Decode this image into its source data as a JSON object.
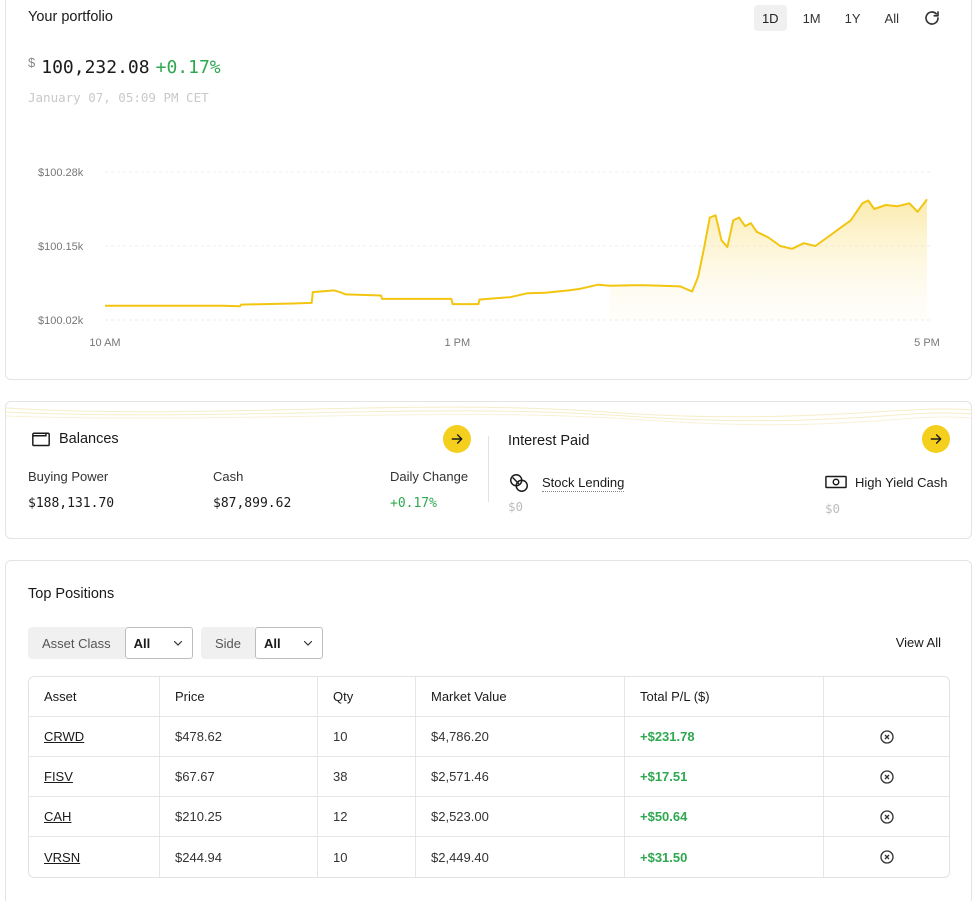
{
  "portfolio": {
    "title": "Your portfolio",
    "ranges": [
      "1D",
      "1M",
      "1Y",
      "All"
    ],
    "active_range": "1D",
    "currency": "$",
    "value": "100,232.08",
    "change": "+0.17%",
    "timestamp": "January 07, 05:09 PM CET"
  },
  "chart_data": {
    "type": "area",
    "y_tick_labels": [
      "$100.28k",
      "$100.15k",
      "$100.02k"
    ],
    "y_ticks": [
      100280,
      100150,
      100020
    ],
    "ylim": [
      100020,
      100280
    ],
    "x_tick_labels": [
      "10 AM",
      "1 PM",
      "5 PM"
    ],
    "x_ticks": [
      10,
      13,
      17
    ],
    "xlim": [
      10,
      17
    ],
    "line_color": "#f2c511",
    "grid": "horizontal dashed",
    "points": [
      [
        10.0,
        100045
      ],
      [
        10.5,
        100045
      ],
      [
        11.0,
        100045
      ],
      [
        11.15,
        100044
      ],
      [
        11.16,
        100047
      ],
      [
        11.6,
        100049
      ],
      [
        11.76,
        100050
      ],
      [
        11.77,
        100069
      ],
      [
        11.95,
        100072
      ],
      [
        12.0,
        100069
      ],
      [
        12.05,
        100065
      ],
      [
        12.35,
        100063
      ],
      [
        12.36,
        100057
      ],
      [
        12.6,
        100057
      ],
      [
        12.95,
        100057
      ],
      [
        12.96,
        100048
      ],
      [
        13.18,
        100048
      ],
      [
        13.19,
        100056
      ],
      [
        13.45,
        100060
      ],
      [
        13.6,
        100067
      ],
      [
        13.75,
        100068
      ],
      [
        13.95,
        100072
      ],
      [
        14.05,
        100075
      ],
      [
        14.2,
        100082
      ],
      [
        14.3,
        100080
      ],
      [
        14.5,
        100081
      ],
      [
        14.6,
        100081
      ],
      [
        14.9,
        100079
      ],
      [
        15.0,
        100070
      ],
      [
        15.05,
        100095
      ],
      [
        15.1,
        100145
      ],
      [
        15.15,
        100200
      ],
      [
        15.2,
        100204
      ],
      [
        15.25,
        100160
      ],
      [
        15.3,
        100148
      ],
      [
        15.35,
        100195
      ],
      [
        15.4,
        100200
      ],
      [
        15.45,
        100185
      ],
      [
        15.5,
        100190
      ],
      [
        15.55,
        100175
      ],
      [
        15.65,
        100165
      ],
      [
        15.75,
        100150
      ],
      [
        15.85,
        100145
      ],
      [
        15.95,
        100155
      ],
      [
        16.05,
        100150
      ],
      [
        16.15,
        100165
      ],
      [
        16.25,
        100180
      ],
      [
        16.35,
        100195
      ],
      [
        16.45,
        100225
      ],
      [
        16.5,
        100230
      ],
      [
        16.55,
        100215
      ],
      [
        16.65,
        100222
      ],
      [
        16.75,
        100220
      ],
      [
        16.85,
        100225
      ],
      [
        16.92,
        100210
      ],
      [
        17.0,
        100232
      ]
    ]
  },
  "balances": {
    "title": "Balances",
    "items": [
      {
        "label": "Buying Power",
        "value": "$188,131.70"
      },
      {
        "label": "Cash",
        "value": "$87,899.62"
      },
      {
        "label": "Daily Change",
        "value": "+0.17%"
      }
    ]
  },
  "interest": {
    "title": "Interest Paid",
    "items": [
      {
        "label": "Stock Lending",
        "value": "$0",
        "icon": "coins-icon"
      },
      {
        "label": "High Yield Cash",
        "value": "$0",
        "icon": "banknote-icon"
      }
    ]
  },
  "positions": {
    "title": "Top Positions",
    "filters": [
      {
        "label": "Asset Class",
        "value": "All"
      },
      {
        "label": "Side",
        "value": "All"
      }
    ],
    "view_all": "View All",
    "columns": [
      "Asset",
      "Price",
      "Qty",
      "Market Value",
      "Total P/L ($)",
      ""
    ],
    "rows": [
      {
        "asset": "CRWD",
        "price": "$478.62",
        "qty": "10",
        "market_value": "$4,786.20",
        "pl": "+$231.78"
      },
      {
        "asset": "FISV",
        "price": "$67.67",
        "qty": "38",
        "market_value": "$2,571.46",
        "pl": "+$17.51"
      },
      {
        "asset": "CAH",
        "price": "$210.25",
        "qty": "12",
        "market_value": "$2,523.00",
        "pl": "+$50.64"
      },
      {
        "asset": "VRSN",
        "price": "$244.94",
        "qty": "10",
        "market_value": "$2,449.40",
        "pl": "+$31.50"
      }
    ]
  },
  "colors": {
    "accent": "#f5cf1d",
    "positive": "#2fa84f"
  }
}
